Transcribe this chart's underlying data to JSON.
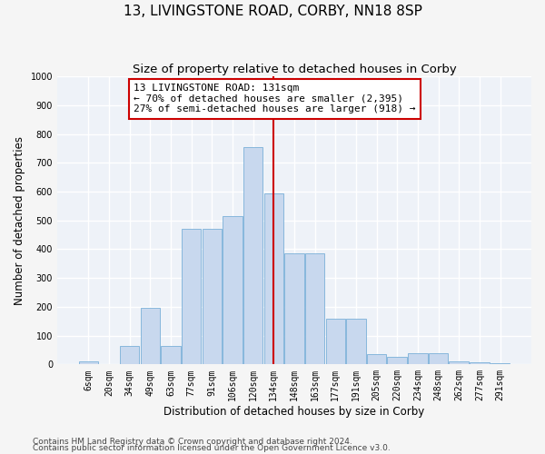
{
  "title": "13, LIVINGSTONE ROAD, CORBY, NN18 8SP",
  "subtitle": "Size of property relative to detached houses in Corby",
  "xlabel": "Distribution of detached houses by size in Corby",
  "ylabel": "Number of detached properties",
  "categories": [
    "6sqm",
    "20sqm",
    "34sqm",
    "49sqm",
    "63sqm",
    "77sqm",
    "91sqm",
    "106sqm",
    "120sqm",
    "134sqm",
    "148sqm",
    "163sqm",
    "177sqm",
    "191sqm",
    "205sqm",
    "220sqm",
    "234sqm",
    "248sqm",
    "262sqm",
    "277sqm",
    "291sqm"
  ],
  "values": [
    10,
    0,
    65,
    195,
    65,
    470,
    470,
    515,
    755,
    595,
    385,
    385,
    158,
    158,
    35,
    25,
    40,
    40,
    10,
    7,
    5
  ],
  "bar_color": "#c8d8ee",
  "bar_edge_color": "#7ab0d8",
  "vline_x": 9.0,
  "vline_color": "#cc0000",
  "annotation_text": "13 LIVINGSTONE ROAD: 131sqm\n← 70% of detached houses are smaller (2,395)\n27% of semi-detached houses are larger (918) →",
  "annotation_box_color": "#ffffff",
  "annotation_box_edge_color": "#cc0000",
  "ylim": [
    0,
    1000
  ],
  "yticks": [
    0,
    100,
    200,
    300,
    400,
    500,
    600,
    700,
    800,
    900,
    1000
  ],
  "footer1": "Contains HM Land Registry data © Crown copyright and database right 2024.",
  "footer2": "Contains public sector information licensed under the Open Government Licence v3.0.",
  "background_color": "#eef2f8",
  "grid_color": "#ffffff",
  "title_fontsize": 11,
  "subtitle_fontsize": 9.5,
  "axis_label_fontsize": 8.5,
  "tick_fontsize": 7,
  "annotation_fontsize": 8,
  "footer_fontsize": 6.5
}
